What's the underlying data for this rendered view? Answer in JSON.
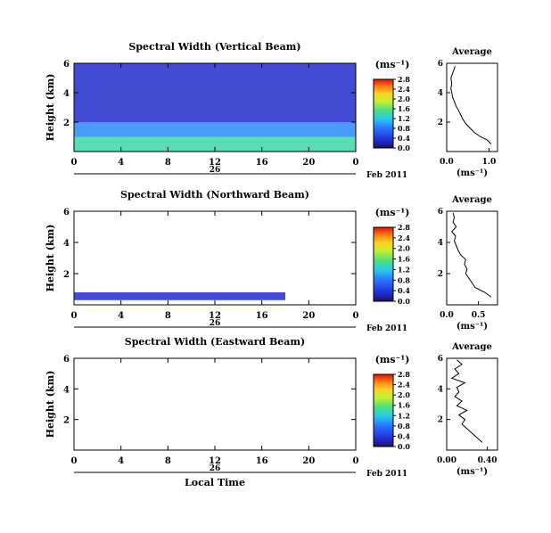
{
  "chart_data": [
    {
      "type": "heatmap",
      "title": "Spectral Width (Vertical Beam)",
      "ylabel": "Height (km)",
      "xlabel": "",
      "x_ticks": [
        "0",
        "4",
        "8",
        "12",
        "16",
        "20",
        "0"
      ],
      "x_range": [
        0,
        24
      ],
      "y_ticks": [
        "2",
        "4",
        "6"
      ],
      "y_range": [
        0,
        6
      ],
      "day_label": "26",
      "date_label": "Feb 2011",
      "colorbar": {
        "unit": "(ms⁻¹)",
        "ticks": [
          "0.0",
          "0.4",
          "0.8",
          "1.2",
          "1.6",
          "2.0",
          "2.4",
          "2.8"
        ],
        "range": [
          0,
          2.8
        ]
      },
      "average": {
        "title": "Average",
        "xlabel": "(ms⁻¹)",
        "x_ticks": [
          "0.0",
          "1.0"
        ],
        "x_range": [
          0,
          1.2
        ],
        "y_ticks": [
          "2",
          "4",
          "6"
        ],
        "profile_height_km": [
          0.5,
          0.8,
          1.0,
          1.3,
          1.6,
          1.9,
          2.2,
          2.5,
          2.8,
          3.1,
          3.4,
          3.7,
          4.0,
          4.3,
          4.6,
          5.0,
          5.4,
          5.8
        ],
        "profile_value": [
          1.05,
          0.95,
          0.8,
          0.65,
          0.55,
          0.45,
          0.38,
          0.33,
          0.28,
          0.22,
          0.18,
          0.14,
          0.12,
          0.1,
          0.12,
          0.1,
          0.15,
          0.2
        ]
      },
      "bands": [
        {
          "x0": 0,
          "x1": 24,
          "y0": 0.0,
          "y1": 1.0,
          "value": 1.4
        },
        {
          "x0": 0,
          "x1": 24,
          "y0": 1.0,
          "y1": 2.0,
          "value": 0.9
        },
        {
          "x0": 0,
          "x1": 24,
          "y0": 2.0,
          "y1": 6.0,
          "value": 0.3
        }
      ]
    },
    {
      "type": "heatmap",
      "title": "Spectral Width (Northward Beam)",
      "ylabel": "Height (km)",
      "xlabel": "",
      "x_ticks": [
        "0",
        "4",
        "8",
        "12",
        "16",
        "20",
        "0"
      ],
      "x_range": [
        0,
        24
      ],
      "y_ticks": [
        "2",
        "4",
        "6"
      ],
      "y_range": [
        0,
        6
      ],
      "day_label": "26",
      "date_label": "Feb 2011",
      "colorbar": {
        "unit": "(ms⁻¹)",
        "ticks": [
          "0.0",
          "0.4",
          "0.8",
          "1.2",
          "1.6",
          "2.0",
          "2.4",
          "2.8"
        ],
        "range": [
          0,
          2.8
        ]
      },
      "average": {
        "title": "Average",
        "xlabel": "(ms⁻¹)",
        "x_ticks": [
          "0.0",
          "0.5"
        ],
        "x_range": [
          0,
          0.8
        ],
        "y_ticks": [
          "2",
          "4",
          "6"
        ],
        "profile_height_km": [
          0.5,
          0.8,
          1.1,
          1.4,
          1.7,
          2.0,
          2.3,
          2.6,
          2.9,
          3.2,
          3.5,
          3.8,
          4.1,
          4.4,
          4.7,
          5.0,
          5.3,
          5.6,
          5.9
        ],
        "profile_value": [
          0.7,
          0.6,
          0.45,
          0.4,
          0.35,
          0.3,
          0.32,
          0.28,
          0.3,
          0.22,
          0.18,
          0.15,
          0.12,
          0.14,
          0.08,
          0.15,
          0.1,
          0.12,
          0.1
        ]
      },
      "bands": [
        {
          "x0": 0,
          "x1": 18,
          "y0": 0.3,
          "y1": 0.8,
          "value": 0.3
        }
      ]
    },
    {
      "type": "heatmap",
      "title": "Spectral Width (Eastward Beam)",
      "ylabel": "Height (km)",
      "xlabel": "Local Time",
      "x_ticks": [
        "0",
        "4",
        "8",
        "12",
        "16",
        "20",
        "0"
      ],
      "x_range": [
        0,
        24
      ],
      "y_ticks": [
        "2",
        "4",
        "6"
      ],
      "y_range": [
        0,
        6
      ],
      "day_label": "26",
      "date_label": "Feb 2011",
      "colorbar": {
        "unit": "(ms⁻¹)",
        "ticks": [
          "0.0",
          "0.4",
          "0.8",
          "1.2",
          "1.6",
          "2.0",
          "2.4",
          "2.8"
        ],
        "range": [
          0,
          2.8
        ]
      },
      "average": {
        "title": "Average",
        "xlabel": "(ms⁻¹)",
        "x_ticks": [
          "0.00",
          "0.40"
        ],
        "x_range": [
          0,
          0.5
        ],
        "y_ticks": [
          "2",
          "4",
          "6"
        ],
        "profile_height_km": [
          0.5,
          0.8,
          1.1,
          1.4,
          1.7,
          2.0,
          2.3,
          2.6,
          2.9,
          3.2,
          3.5,
          3.8,
          4.1,
          4.4,
          4.7,
          5.0,
          5.3,
          5.6,
          5.9
        ],
        "profile_value": [
          0.35,
          0.3,
          0.25,
          0.2,
          0.15,
          0.18,
          0.12,
          0.2,
          0.1,
          0.15,
          0.08,
          0.12,
          0.1,
          0.18,
          0.05,
          0.12,
          0.08,
          0.15,
          0.1
        ]
      },
      "bands": []
    }
  ]
}
